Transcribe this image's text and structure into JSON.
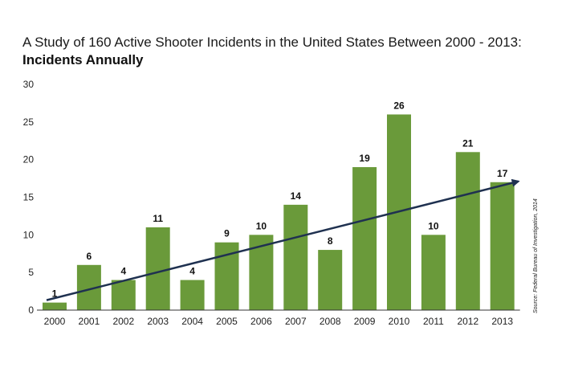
{
  "title": "A Study of 160 Active Shooter Incidents in the United States Between 2000 - 2013:",
  "subtitle": "Incidents Annually",
  "source": "Source: Federal Bureau of Investigation, 2014",
  "colors": {
    "bar": "#6a9a3a",
    "arrow": "#1f3150",
    "axis": "#333333"
  },
  "chart_data": {
    "type": "bar",
    "categories": [
      "2000",
      "2001",
      "2002",
      "2003",
      "2004",
      "2005",
      "2006",
      "2007",
      "2008",
      "2009",
      "2010",
      "2011",
      "2012",
      "2013"
    ],
    "values": [
      1,
      6,
      4,
      11,
      4,
      9,
      10,
      14,
      8,
      19,
      26,
      10,
      21,
      17
    ],
    "ylim": [
      0,
      30
    ],
    "yticks": [
      0,
      5,
      10,
      15,
      20,
      25,
      30
    ],
    "trend_arrow": {
      "from": [
        2000,
        1
      ],
      "to": [
        2013,
        17
      ]
    }
  }
}
